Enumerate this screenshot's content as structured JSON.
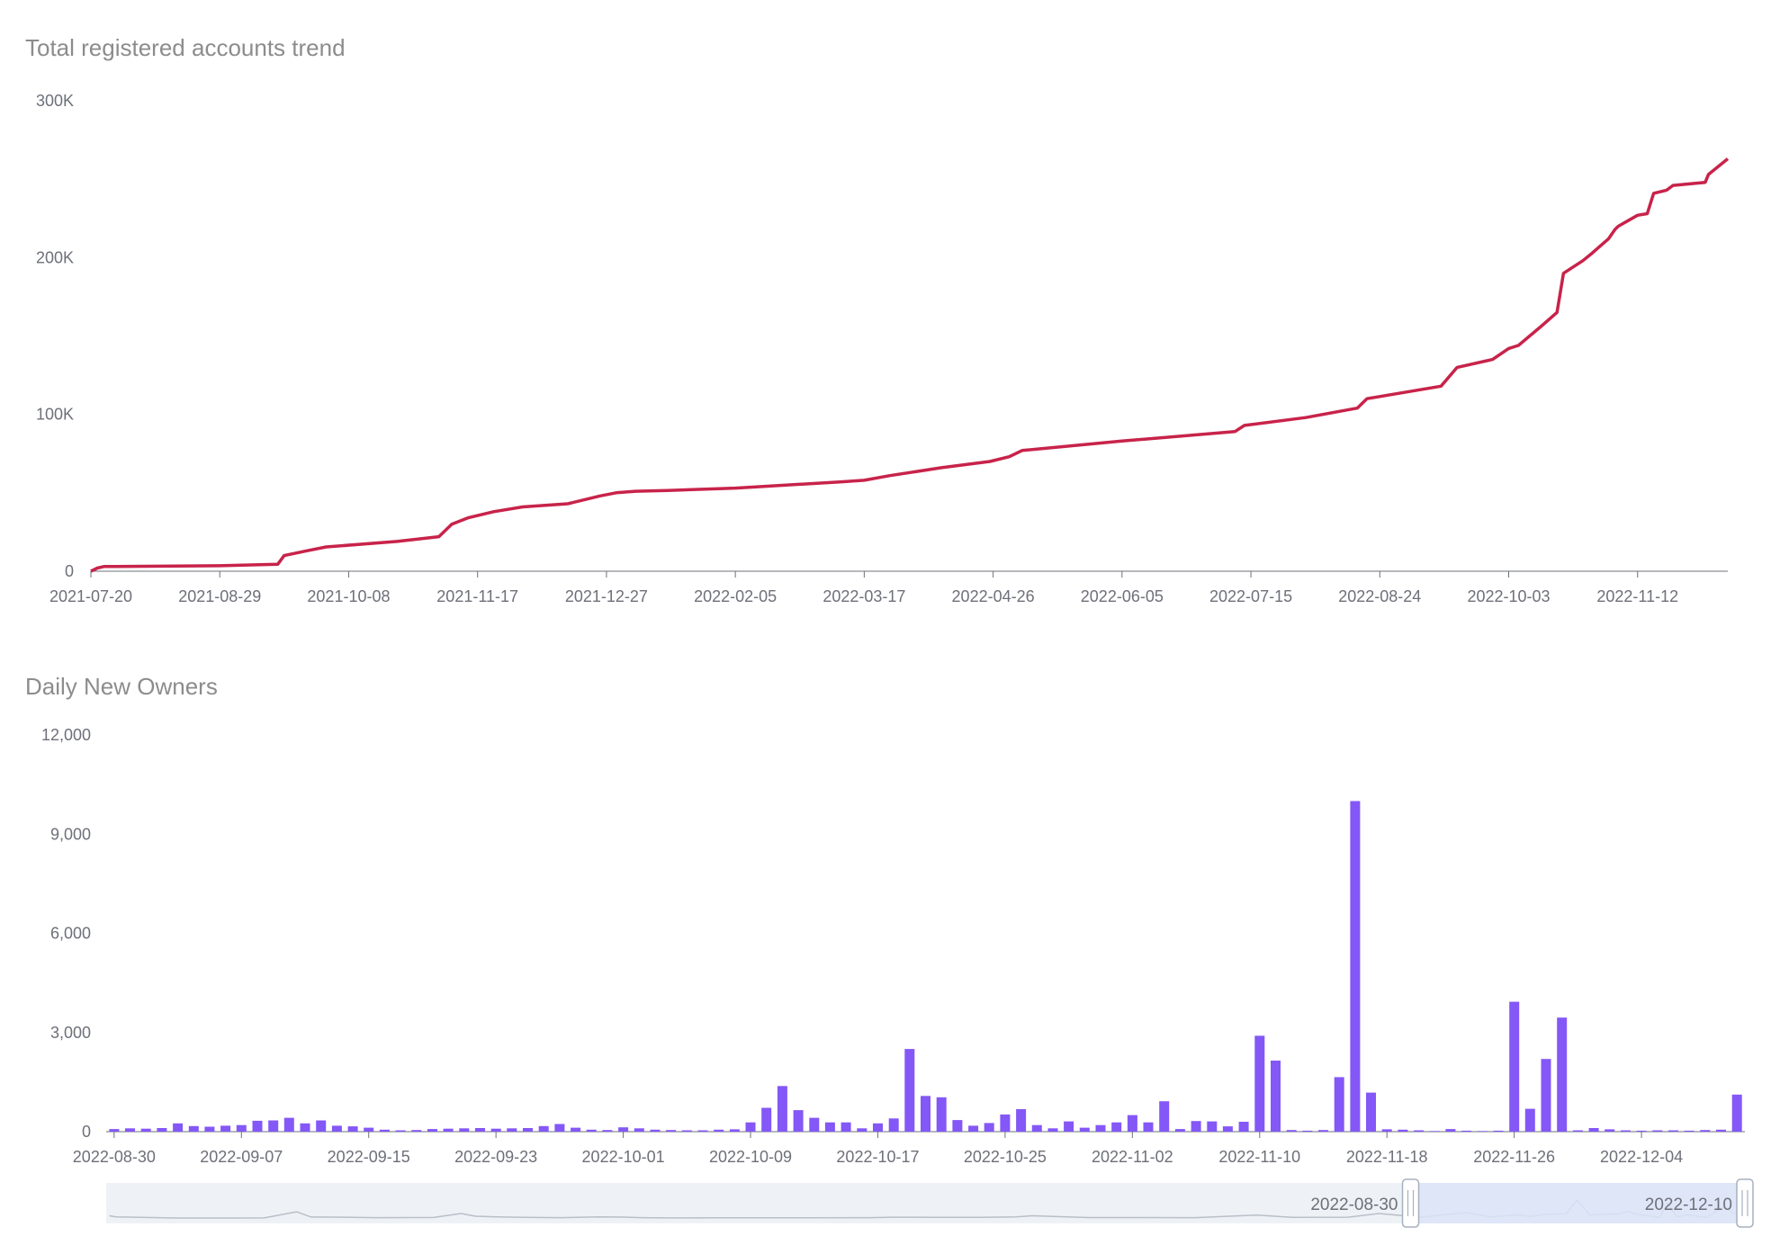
{
  "colors": {
    "line": "#c8234a",
    "bar": "#8457f7",
    "axis": "#6e7079",
    "zoom_fill": "#dbe4f8",
    "zoom_bg": "#eef2f6",
    "zoom_line": "#b9bec8"
  },
  "chart_data": [
    {
      "type": "line",
      "title": "Total registered accounts trend",
      "xlabel": "",
      "ylabel": "",
      "ylim": [
        0,
        300000
      ],
      "y_ticks": [
        "0",
        "100K",
        "200K",
        "300K"
      ],
      "x_ticks": [
        "2021-07-20",
        "2021-08-29",
        "2021-10-08",
        "2021-11-17",
        "2021-12-27",
        "2022-02-05",
        "2022-03-17",
        "2022-04-26",
        "2022-06-05",
        "2022-07-15",
        "2022-08-24",
        "2022-10-03",
        "2022-11-12"
      ],
      "x_range": [
        "2021-07-20",
        "2022-12-10"
      ],
      "grid": false,
      "x": [
        "2021-07-20",
        "2021-07-22",
        "2021-07-24",
        "2021-08-29",
        "2021-09-16",
        "2021-09-18",
        "2021-09-25",
        "2021-10-01",
        "2021-10-23",
        "2021-11-05",
        "2021-11-09",
        "2021-11-14",
        "2021-11-22",
        "2021-12-01",
        "2021-12-15",
        "2021-12-25",
        "2021-12-30",
        "2022-01-05",
        "2022-01-15",
        "2022-02-05",
        "2022-03-10",
        "2022-03-17",
        "2022-03-25",
        "2022-04-10",
        "2022-04-25",
        "2022-05-01",
        "2022-05-05",
        "2022-06-05",
        "2022-07-10",
        "2022-07-13",
        "2022-08-01",
        "2022-08-17",
        "2022-08-20",
        "2022-09-12",
        "2022-09-17",
        "2022-09-28",
        "2022-10-03",
        "2022-10-06",
        "2022-10-13",
        "2022-10-18",
        "2022-10-20",
        "2022-10-26",
        "2022-10-29",
        "2022-11-03",
        "2022-11-05",
        "2022-11-06",
        "2022-11-12",
        "2022-11-15",
        "2022-11-17",
        "2022-11-21",
        "2022-11-23",
        "2022-12-03",
        "2022-12-04",
        "2022-12-10"
      ],
      "y": [
        0,
        2000,
        3000,
        3500,
        4500,
        10000,
        13000,
        15500,
        19000,
        22000,
        30000,
        34000,
        38000,
        41000,
        43000,
        48000,
        50000,
        51000,
        51500,
        53000,
        57000,
        58000,
        61000,
        66000,
        70000,
        73000,
        77000,
        83000,
        89000,
        93000,
        98000,
        104000,
        110000,
        118000,
        130000,
        135000,
        142000,
        144000,
        156000,
        165000,
        190000,
        198000,
        203000,
        212000,
        218000,
        220000,
        227000,
        228000,
        241000,
        243000,
        246000,
        248000,
        253000,
        263000
      ]
    },
    {
      "type": "bar",
      "title": "Daily New Owners",
      "xlabel": "",
      "ylabel": "",
      "ylim": [
        0,
        12000
      ],
      "y_ticks": [
        "0",
        "3,000",
        "6,000",
        "9,000",
        "12,000"
      ],
      "x_ticks": [
        "2022-08-30",
        "2022-09-07",
        "2022-09-15",
        "2022-09-23",
        "2022-10-01",
        "2022-10-09",
        "2022-10-17",
        "2022-10-25",
        "2022-11-02",
        "2022-11-10",
        "2022-11-18",
        "2022-11-26",
        "2022-12-04"
      ],
      "start_date": "2022-08-30",
      "categories": [
        "2022-08-30",
        "2022-08-31",
        "2022-09-01",
        "2022-09-02",
        "2022-09-03",
        "2022-09-04",
        "2022-09-05",
        "2022-09-06",
        "2022-09-07",
        "2022-09-08",
        "2022-09-09",
        "2022-09-10",
        "2022-09-11",
        "2022-09-12",
        "2022-09-13",
        "2022-09-14",
        "2022-09-15",
        "2022-09-16",
        "2022-09-17",
        "2022-09-18",
        "2022-09-19",
        "2022-09-20",
        "2022-09-21",
        "2022-09-22",
        "2022-09-23",
        "2022-09-24",
        "2022-09-25",
        "2022-09-26",
        "2022-09-27",
        "2022-09-28",
        "2022-09-29",
        "2022-09-30",
        "2022-10-01",
        "2022-10-02",
        "2022-10-03",
        "2022-10-04",
        "2022-10-05",
        "2022-10-06",
        "2022-10-07",
        "2022-10-08",
        "2022-10-09",
        "2022-10-10",
        "2022-10-11",
        "2022-10-12",
        "2022-10-13",
        "2022-10-14",
        "2022-10-15",
        "2022-10-16",
        "2022-10-17",
        "2022-10-18",
        "2022-10-19",
        "2022-10-20",
        "2022-10-21",
        "2022-10-22",
        "2022-10-23",
        "2022-10-24",
        "2022-10-25",
        "2022-10-26",
        "2022-10-27",
        "2022-10-28",
        "2022-10-29",
        "2022-10-30",
        "2022-10-31",
        "2022-11-01",
        "2022-11-02",
        "2022-11-03",
        "2022-11-04",
        "2022-11-05",
        "2022-11-06",
        "2022-11-07",
        "2022-11-08",
        "2022-11-09",
        "2022-11-10",
        "2022-11-11",
        "2022-11-12",
        "2022-11-13",
        "2022-11-14",
        "2022-11-15",
        "2022-11-16",
        "2022-11-17",
        "2022-11-18",
        "2022-11-19",
        "2022-11-20",
        "2022-11-21",
        "2022-11-22",
        "2022-11-23",
        "2022-11-24",
        "2022-11-25",
        "2022-11-26",
        "2022-11-27",
        "2022-11-28",
        "2022-11-29",
        "2022-11-30",
        "2022-12-01",
        "2022-12-02",
        "2022-12-03",
        "2022-12-04",
        "2022-12-05",
        "2022-12-06",
        "2022-12-07",
        "2022-12-08",
        "2022-12-09",
        "2022-12-10"
      ],
      "values": [
        80,
        100,
        90,
        110,
        250,
        170,
        150,
        180,
        200,
        330,
        340,
        420,
        250,
        340,
        180,
        160,
        120,
        60,
        40,
        50,
        80,
        90,
        100,
        110,
        90,
        100,
        110,
        170,
        230,
        120,
        60,
        50,
        130,
        100,
        60,
        50,
        40,
        40,
        60,
        70,
        280,
        720,
        1380,
        650,
        420,
        280,
        280,
        100,
        250,
        400,
        2500,
        1080,
        1040,
        350,
        180,
        260,
        520,
        680,
        200,
        100,
        310,
        120,
        200,
        280,
        500,
        280,
        920,
        80,
        320,
        310,
        160,
        300,
        2900,
        2150,
        50,
        30,
        50,
        1650,
        10000,
        1180,
        70,
        60,
        40,
        20,
        80,
        30,
        20,
        30,
        3930,
        690,
        2200,
        3450,
        40,
        110,
        70,
        40,
        30,
        40,
        40,
        30,
        50,
        60,
        1120
      ]
    }
  ],
  "zoom": {
    "start_label": "2022-08-30",
    "end_label": "2022-12-10",
    "start_fraction": 0.796,
    "end_fraction": 1.0
  }
}
